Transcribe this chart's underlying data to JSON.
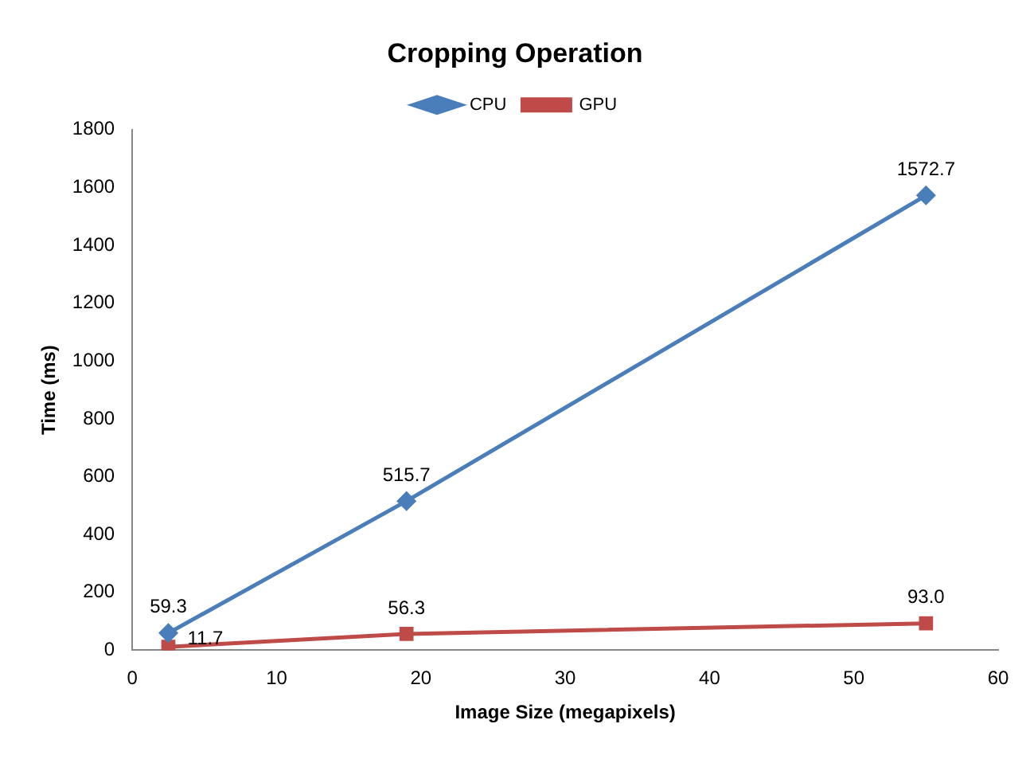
{
  "chart_data": {
    "type": "line",
    "title": "Cropping Operation",
    "xlabel": "Image Size (megapixels)",
    "ylabel": "Time (ms)",
    "xlim": [
      0,
      60
    ],
    "xticks": [
      0,
      10,
      20,
      30,
      40,
      50,
      60
    ],
    "ylim": [
      0,
      1800
    ],
    "yticks": [
      0,
      200,
      400,
      600,
      800,
      1000,
      1200,
      1400,
      1600,
      1800
    ],
    "grid": false,
    "legend": "top",
    "x": [
      2.5,
      19,
      55
    ],
    "series": [
      {
        "name": "CPU",
        "color": "#4a7ebb",
        "marker": "diamond",
        "values": [
          59.3,
          515.7,
          1572.7
        ],
        "value_labels": [
          "59.3",
          "515.7",
          "1572.7"
        ]
      },
      {
        "name": "GPU",
        "color": "#be4b48",
        "marker": "square",
        "values": [
          11.7,
          56.3,
          93.0
        ],
        "value_labels": [
          "11.7",
          "56.3",
          "93.0"
        ]
      }
    ]
  }
}
